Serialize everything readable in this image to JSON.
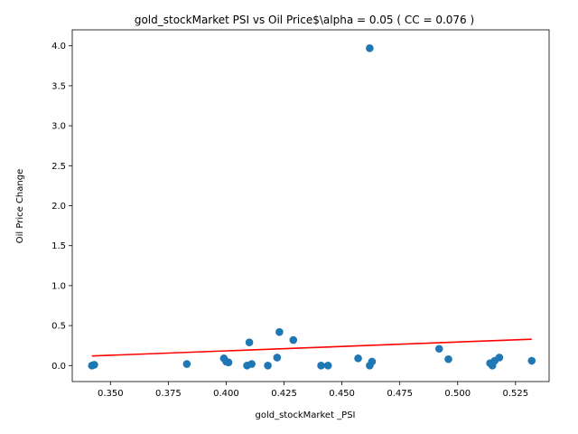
{
  "chart_data": {
    "type": "scatter",
    "title": "gold_stockMarket  PSI vs Oil Price$\\alpha = 0.05 ( CC = 0.076 )",
    "xlabel": "gold_stockMarket _PSI",
    "ylabel": "Oil Price Change",
    "xlim": [
      0.3335,
      0.5395
    ],
    "ylim": [
      -0.2,
      4.2
    ],
    "xticks": [
      0.35,
      0.375,
      0.4,
      0.425,
      0.45,
      0.475,
      0.5,
      0.525
    ],
    "xtick_labels": [
      "0.350",
      "0.375",
      "0.400",
      "0.425",
      "0.450",
      "0.475",
      "0.500",
      "0.525"
    ],
    "yticks": [
      0.0,
      0.5,
      1.0,
      1.5,
      2.0,
      2.5,
      3.0,
      3.5,
      4.0
    ],
    "ytick_labels": [
      "0.0",
      "0.5",
      "1.0",
      "1.5",
      "2.0",
      "2.5",
      "3.0",
      "3.5",
      "4.0"
    ],
    "grid": false,
    "point_color": "#1f77b4",
    "fit_color": "#ff0000",
    "points": [
      {
        "x": 0.342,
        "y": 0.0
      },
      {
        "x": 0.343,
        "y": 0.01
      },
      {
        "x": 0.383,
        "y": 0.02
      },
      {
        "x": 0.399,
        "y": 0.09
      },
      {
        "x": 0.4,
        "y": 0.05
      },
      {
        "x": 0.401,
        "y": 0.04
      },
      {
        "x": 0.409,
        "y": 0.0
      },
      {
        "x": 0.41,
        "y": 0.29
      },
      {
        "x": 0.411,
        "y": 0.02
      },
      {
        "x": 0.418,
        "y": 0.0
      },
      {
        "x": 0.422,
        "y": 0.1
      },
      {
        "x": 0.423,
        "y": 0.42
      },
      {
        "x": 0.429,
        "y": 0.32
      },
      {
        "x": 0.441,
        "y": 0.0
      },
      {
        "x": 0.444,
        "y": 0.0
      },
      {
        "x": 0.457,
        "y": 0.09
      },
      {
        "x": 0.462,
        "y": 3.97
      },
      {
        "x": 0.462,
        "y": 0.0
      },
      {
        "x": 0.463,
        "y": 0.05
      },
      {
        "x": 0.492,
        "y": 0.21
      },
      {
        "x": 0.496,
        "y": 0.08
      },
      {
        "x": 0.514,
        "y": 0.03
      },
      {
        "x": 0.515,
        "y": 0.0
      },
      {
        "x": 0.516,
        "y": 0.06
      },
      {
        "x": 0.518,
        "y": 0.1
      },
      {
        "x": 0.532,
        "y": 0.06
      }
    ],
    "fit_line": [
      {
        "x": 0.342,
        "y": 0.12
      },
      {
        "x": 0.532,
        "y": 0.33
      }
    ]
  }
}
